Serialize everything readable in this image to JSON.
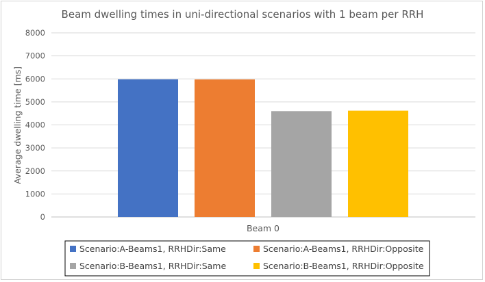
{
  "chart_data": {
    "type": "bar",
    "title": "Beam dwelling times in uni-directional scenarios with 1 beam per RRH",
    "xlabel": "Beam 0",
    "ylabel": "Average dwelling time [ms]",
    "categories": [
      "Beam 0"
    ],
    "ylim": [
      0,
      8000
    ],
    "yticks": [
      0,
      1000,
      2000,
      3000,
      4000,
      5000,
      6000,
      7000,
      8000
    ],
    "grid": true,
    "legend_position": "bottom",
    "series": [
      {
        "name": "Scenario:A-Beams1, RRHDir:Same",
        "values": [
          5980
        ],
        "color": "#4472C4"
      },
      {
        "name": "Scenario:A-Beams1, RRHDir:Opposite",
        "values": [
          5975
        ],
        "color": "#ED7D31"
      },
      {
        "name": "Scenario:B-Beams1, RRHDir:Same",
        "values": [
          4600
        ],
        "color": "#A5A5A5"
      },
      {
        "name": "Scenario:B-Beams1, RRHDir:Opposite",
        "values": [
          4620
        ],
        "color": "#FFC000"
      }
    ]
  }
}
